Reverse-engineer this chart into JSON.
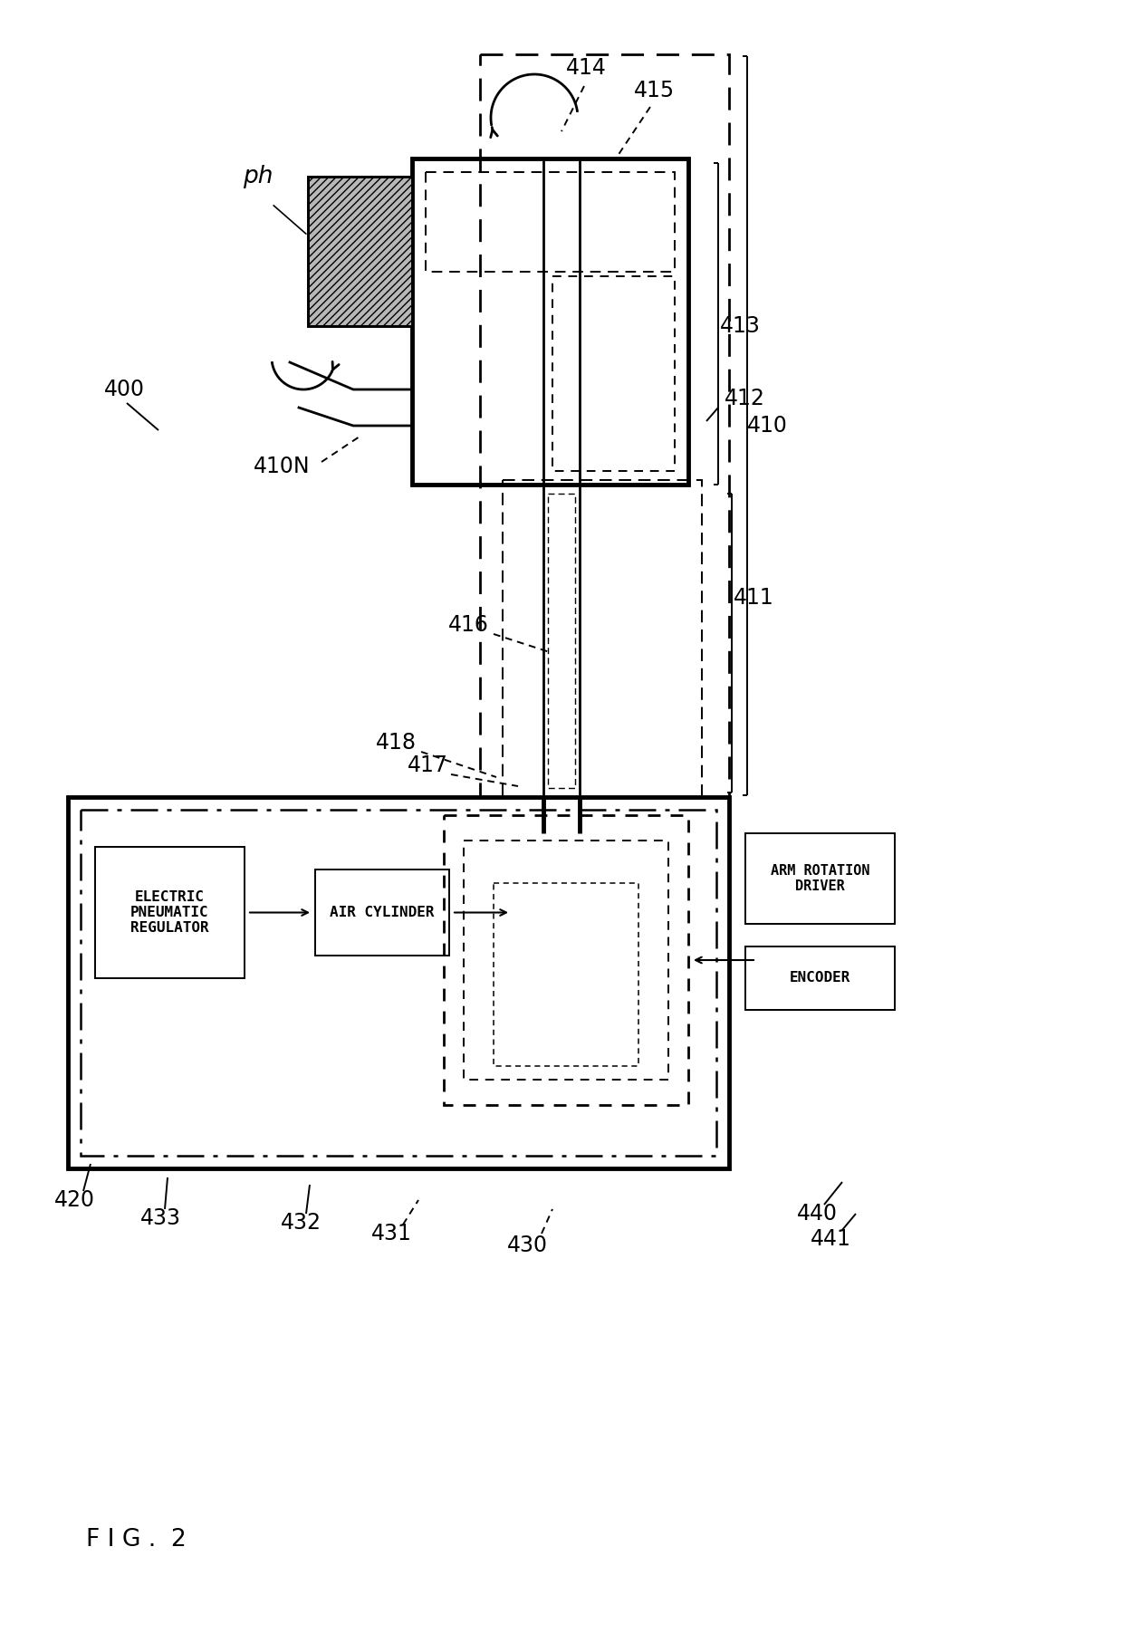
{
  "bg": "#ffffff",
  "fig_label": "F I G .  2",
  "labels": {
    "ph": "ph",
    "400": "400",
    "410": "410",
    "410N": "410N",
    "411": "411",
    "412": "412",
    "413": "413",
    "414": "414",
    "415": "415",
    "416": "416",
    "417": "417",
    "418": "418",
    "420": "420",
    "430": "430",
    "431": "431",
    "432": "432",
    "433": "433",
    "440": "440",
    "441": "441"
  },
  "texts": {
    "epr": "ELECTRIC\nPNEUMATIC\nREGULATOR",
    "air": "AIR CYLINDER",
    "arm_driver": "ARM ROTATION\nDRIVER",
    "encoder": "ENCODER"
  }
}
